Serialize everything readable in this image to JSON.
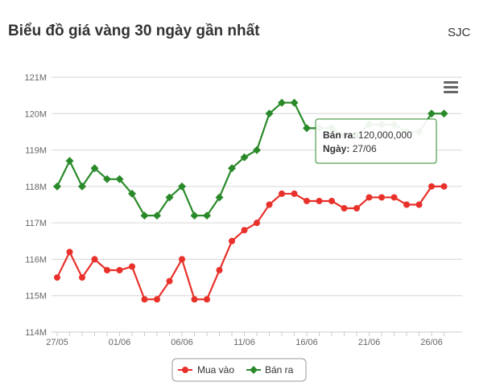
{
  "header": {
    "title": "Biểu đồ giá vàng 30 ngày gần nhất",
    "source": "SJC"
  },
  "menu_icon": "hamburger-menu-icon",
  "tooltip": {
    "series_label": "Bán ra",
    "value_text": "120,000,000",
    "date_label": "Ngày",
    "date_value": "27/06"
  },
  "chart_data": {
    "type": "line",
    "x": [
      "27/05",
      "28/05",
      "29/05",
      "30/05",
      "31/05",
      "01/06",
      "02/06",
      "03/06",
      "04/06",
      "05/06",
      "06/06",
      "07/06",
      "08/06",
      "09/06",
      "10/06",
      "11/06",
      "12/06",
      "13/06",
      "14/06",
      "15/06",
      "16/06",
      "17/06",
      "18/06",
      "19/06",
      "20/06",
      "21/06",
      "22/06",
      "23/06",
      "24/06",
      "25/06",
      "26/06",
      "27/06"
    ],
    "x_tick_labels": [
      "27/05",
      "01/06",
      "06/06",
      "11/06",
      "16/06",
      "21/06",
      "26/06"
    ],
    "y_tick_labels": [
      "114M",
      "115M",
      "116M",
      "117M",
      "118M",
      "119M",
      "120M",
      "121M"
    ],
    "ylim": [
      114,
      121
    ],
    "y_unit": "M",
    "grid": true,
    "legend_position": "bottom-center",
    "series": [
      {
        "name": "Mua vào",
        "color": "#e8312a",
        "marker": "circle",
        "values": [
          115.5,
          116.2,
          115.5,
          116.0,
          115.7,
          115.7,
          115.8,
          114.9,
          114.9,
          115.4,
          116.0,
          114.9,
          114.9,
          115.7,
          116.5,
          116.8,
          117.0,
          117.5,
          117.8,
          117.8,
          117.6,
          117.6,
          117.6,
          117.4,
          117.4,
          117.7,
          117.7,
          117.7,
          117.5,
          117.5,
          118.0,
          118.0
        ]
      },
      {
        "name": "Bán ra",
        "color": "#2a8a2a",
        "marker": "diamond",
        "values": [
          118.0,
          118.7,
          118.0,
          118.5,
          118.2,
          118.2,
          117.8,
          117.2,
          117.2,
          117.7,
          118.0,
          117.2,
          117.2,
          117.7,
          118.5,
          118.8,
          119.0,
          120.0,
          120.3,
          120.3,
          119.6,
          119.6,
          119.6,
          119.4,
          119.4,
          119.7,
          119.7,
          119.7,
          119.5,
          119.5,
          120.0,
          120.0
        ]
      }
    ]
  }
}
